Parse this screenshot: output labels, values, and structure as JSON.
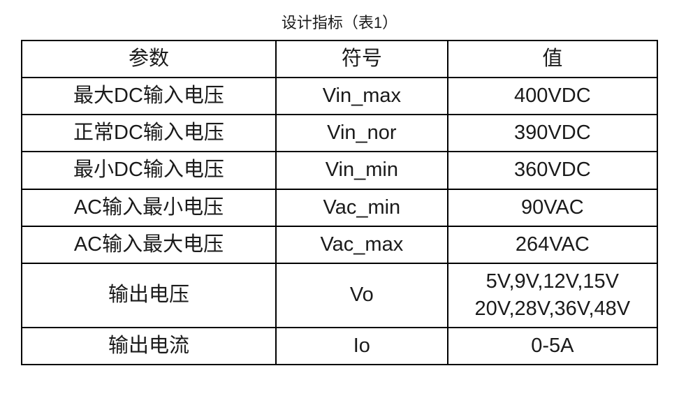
{
  "table": {
    "title": "设计指标（表1）",
    "title_fontsize": 22,
    "cell_fontsize": 29,
    "border_color": "#000000",
    "border_width": 2,
    "background_color": "#ffffff",
    "text_color": "#1a1a1a",
    "columns": [
      {
        "key": "param",
        "label": "参数",
        "width_pct": 40,
        "align": "center"
      },
      {
        "key": "symbol",
        "label": "符号",
        "width_pct": 27,
        "align": "center"
      },
      {
        "key": "value",
        "label": "值",
        "width_pct": 33,
        "align": "center"
      }
    ],
    "rows": [
      {
        "param": "最大DC输入电压",
        "symbol": "Vin_max",
        "value": "400VDC"
      },
      {
        "param": "正常DC输入电压",
        "symbol": "Vin_nor",
        "value": "390VDC"
      },
      {
        "param": "最小DC输入电压",
        "symbol": "Vin_min",
        "value": "360VDC"
      },
      {
        "param": "AC输入最小电压",
        "symbol": "Vac_min",
        "value": "90VAC"
      },
      {
        "param": "AC输入最大电压",
        "symbol": "Vac_max",
        "value": "264VAC"
      },
      {
        "param": "输出电压",
        "symbol": "Vo",
        "value": "5V,9V,12V,15V\n20V,28V,36V,48V"
      },
      {
        "param": "输出电流",
        "symbol": "Io",
        "value": "0-5A"
      }
    ]
  }
}
